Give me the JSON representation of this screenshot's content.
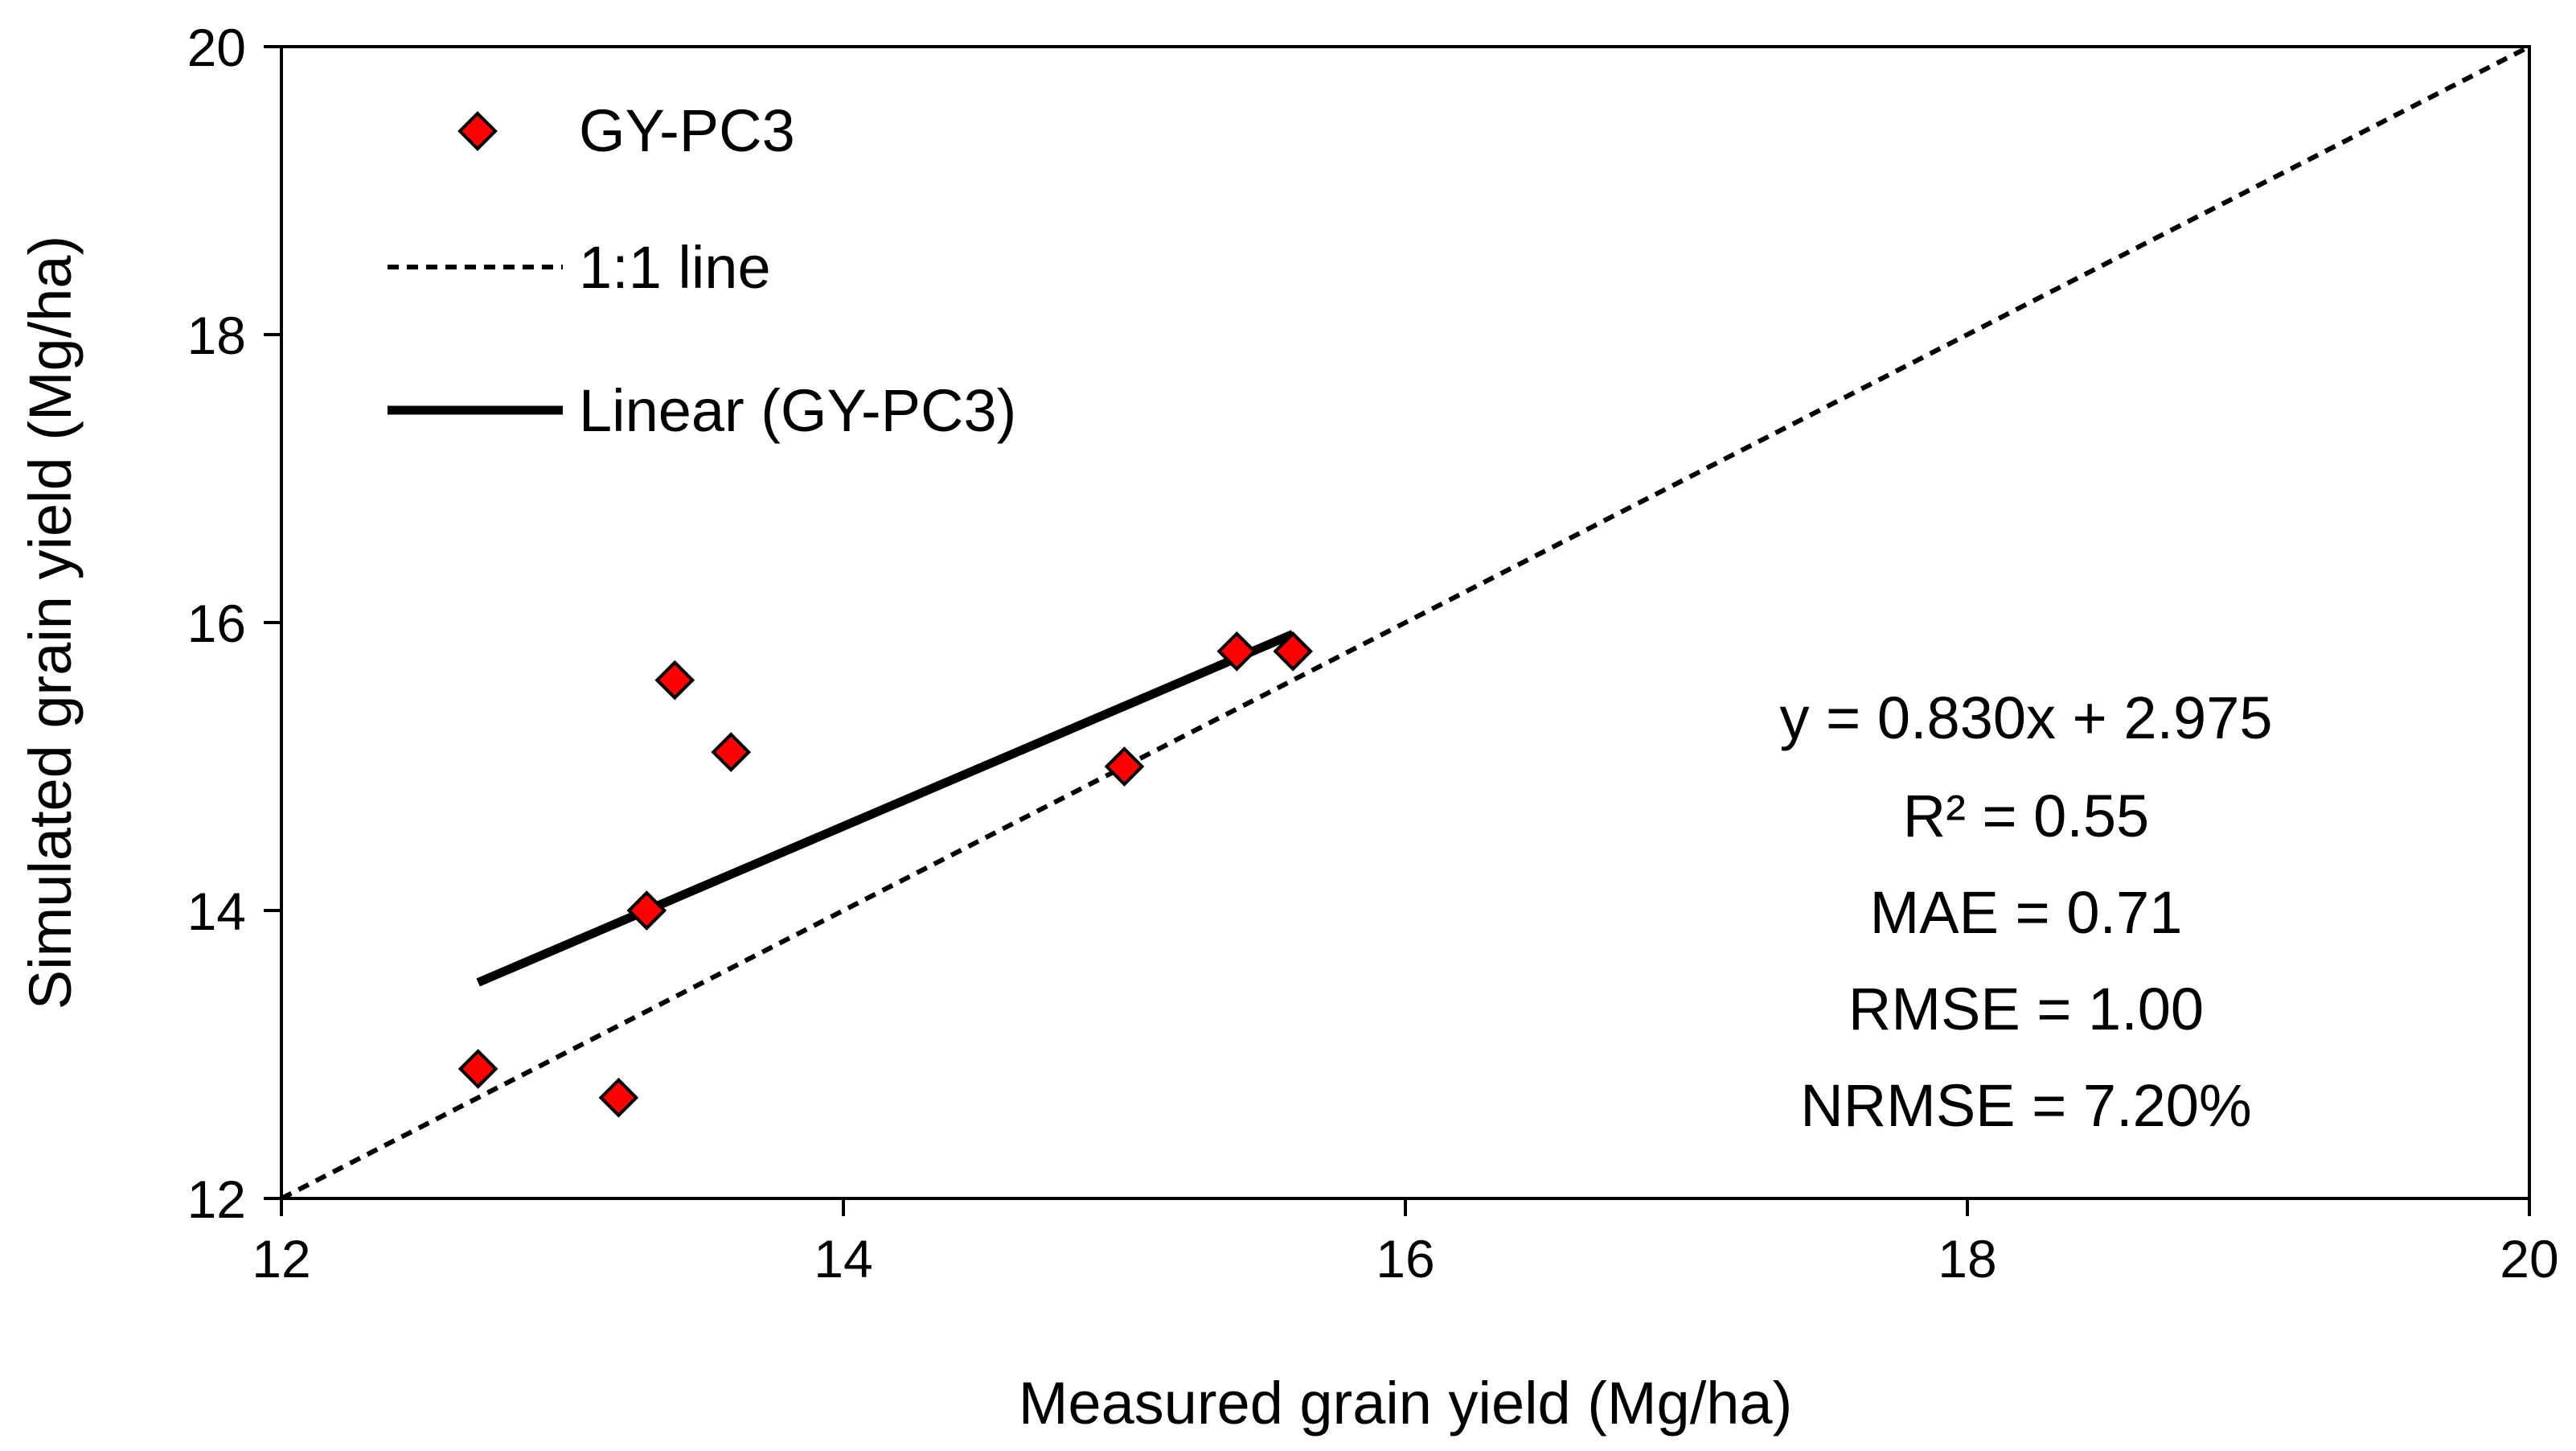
{
  "chart_data": {
    "type": "scatter",
    "title": "",
    "xlabel": "Measured grain yield (Mg/ha)",
    "ylabel": "Simulated grain yield (Mg/ha)",
    "xlim": [
      12,
      20
    ],
    "ylim": [
      12,
      20
    ],
    "xticks": [
      12,
      14,
      16,
      18,
      20
    ],
    "yticks": [
      12,
      14,
      16,
      18,
      20
    ],
    "xtick_labels": [
      "12",
      "14",
      "16",
      "18",
      "20"
    ],
    "ytick_labels": [
      "12",
      "14",
      "16",
      "18",
      "20"
    ],
    "grid": false,
    "legend_position": "top-left",
    "series": [
      {
        "name": "GY-PC3",
        "kind": "scatter",
        "marker": "diamond",
        "color": "#ff0000",
        "x": [
          12.7,
          13.2,
          13.3,
          13.4,
          13.6,
          15.0,
          15.4,
          15.6
        ],
        "y": [
          12.9,
          12.7,
          14.0,
          15.6,
          15.1,
          15.0,
          15.8,
          15.8
        ]
      },
      {
        "name": "1:1 line",
        "kind": "line",
        "style": "dashed",
        "color": "#000000",
        "x": [
          12,
          20
        ],
        "y": [
          12,
          20
        ]
      },
      {
        "name": "Linear (GY-PC3)",
        "kind": "line",
        "style": "solid",
        "color": "#000000",
        "x": [
          12.7,
          15.6
        ],
        "y": [
          13.5,
          15.92
        ]
      }
    ],
    "annotations": [
      "y = 0.830x + 2.975",
      "R² = 0.55",
      "MAE = 0.71",
      "RMSE = 1.00",
      "NRMSE = 7.20%"
    ]
  }
}
